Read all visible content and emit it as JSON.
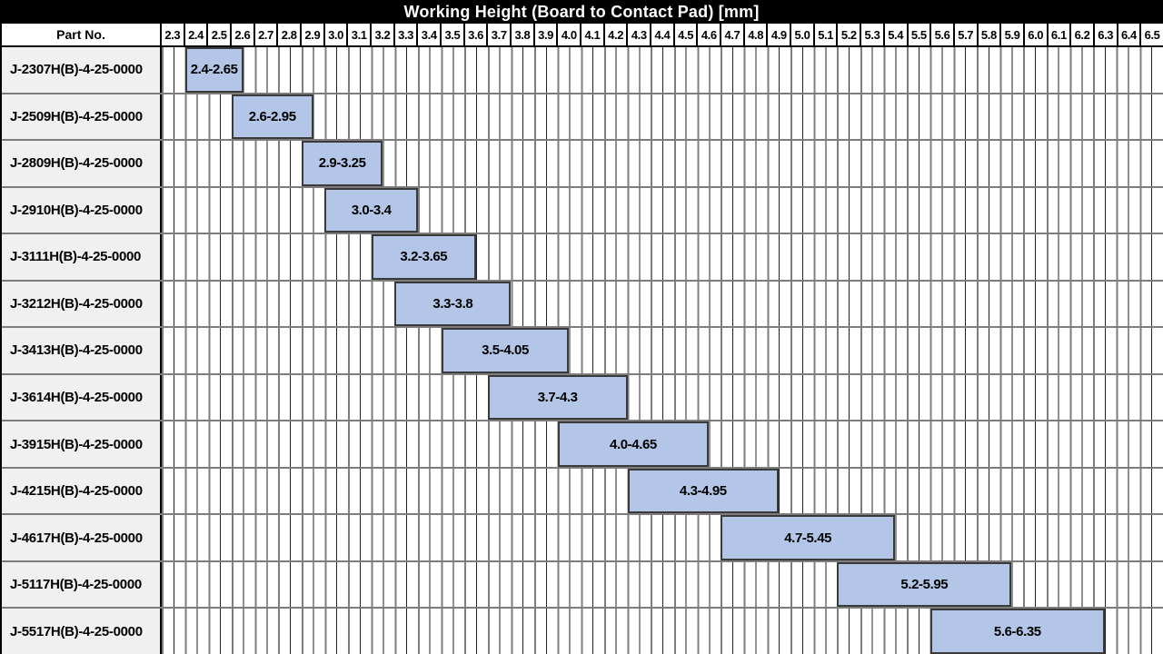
{
  "title": "Working Height (Board to Contact Pad) [mm]",
  "header": {
    "part_no_label": "Part No."
  },
  "scale": {
    "unit": "mm",
    "min": 2.3,
    "max": 6.6,
    "tick_step": 0.1,
    "grid_minor_step": 0.05,
    "ticks": [
      "2.3",
      "2.4",
      "2.5",
      "2.6",
      "2.7",
      "2.8",
      "2.9",
      "3.0",
      "3.1",
      "3.2",
      "3.3",
      "3.4",
      "3.5",
      "3.6",
      "3.7",
      "3.8",
      "3.9",
      "4.0",
      "4.1",
      "4.2",
      "4.3",
      "4.4",
      "4.5",
      "4.6",
      "4.7",
      "4.8",
      "4.9",
      "5.0",
      "5.1",
      "5.2",
      "5.3",
      "5.4",
      "5.5",
      "5.6",
      "5.7",
      "5.8",
      "5.9",
      "6.0",
      "6.1",
      "6.2",
      "6.3",
      "6.4",
      "6.5"
    ]
  },
  "colors": {
    "bar_fill": "#b4c6e7",
    "bar_border": "#3a3a3a",
    "row_label_bg": "#f0f0f0",
    "grid_major": "#7d7d7d",
    "grid_minor": "#222222",
    "separator": "#7d7d7d",
    "title_bg": "#000000",
    "title_fg": "#ffffff"
  },
  "chart_data": {
    "type": "bar",
    "subtype": "horizontal-range-gantt",
    "title": "Working Height (Board to Contact Pad) [mm]",
    "xlabel": "",
    "ylabel": "Part No.",
    "xlim": [
      2.3,
      6.6
    ],
    "grid": "major 0.1 / minor 0.05, on",
    "legend": "none",
    "categories": [
      "J-2307H(B)-4-25-0000",
      "J-2509H(B)-4-25-0000",
      "J-2809H(B)-4-25-0000",
      "J-2910H(B)-4-25-0000",
      "J-3111H(B)-4-25-0000",
      "J-3212H(B)-4-25-0000",
      "J-3413H(B)-4-25-0000",
      "J-3614H(B)-4-25-0000",
      "J-3915H(B)-4-25-0000",
      "J-4215H(B)-4-25-0000",
      "J-4617H(B)-4-25-0000",
      "J-5117H(B)-4-25-0000",
      "J-5517H(B)-4-25-0000"
    ],
    "bars": [
      {
        "part": "J-2307H(B)-4-25-0000",
        "label": "2.4-2.65",
        "start": 2.4,
        "end": 2.65
      },
      {
        "part": "J-2509H(B)-4-25-0000",
        "label": "2.6-2.95",
        "start": 2.6,
        "end": 2.95
      },
      {
        "part": "J-2809H(B)-4-25-0000",
        "label": "2.9-3.25",
        "start": 2.9,
        "end": 3.25
      },
      {
        "part": "J-2910H(B)-4-25-0000",
        "label": "3.0-3.4",
        "start": 3.0,
        "end": 3.4
      },
      {
        "part": "J-3111H(B)-4-25-0000",
        "label": "3.2-3.65",
        "start": 3.2,
        "end": 3.65
      },
      {
        "part": "J-3212H(B)-4-25-0000",
        "label": "3.3-3.8",
        "start": 3.3,
        "end": 3.8
      },
      {
        "part": "J-3413H(B)-4-25-0000",
        "label": "3.5-4.05",
        "start": 3.5,
        "end": 4.05
      },
      {
        "part": "J-3614H(B)-4-25-0000",
        "label": "3.7-4.3",
        "start": 3.7,
        "end": 4.3
      },
      {
        "part": "J-3915H(B)-4-25-0000",
        "label": "4.0-4.65",
        "start": 4.0,
        "end": 4.65
      },
      {
        "part": "J-4215H(B)-4-25-0000",
        "label": "4.3-4.95",
        "start": 4.3,
        "end": 4.95
      },
      {
        "part": "J-4617H(B)-4-25-0000",
        "label": "4.7-5.45",
        "start": 4.7,
        "end": 5.45
      },
      {
        "part": "J-5117H(B)-4-25-0000",
        "label": "5.2-5.95",
        "start": 5.2,
        "end": 5.95
      },
      {
        "part": "J-5517H(B)-4-25-0000",
        "label": "5.6-6.35",
        "start": 5.6,
        "end": 6.35
      }
    ]
  }
}
